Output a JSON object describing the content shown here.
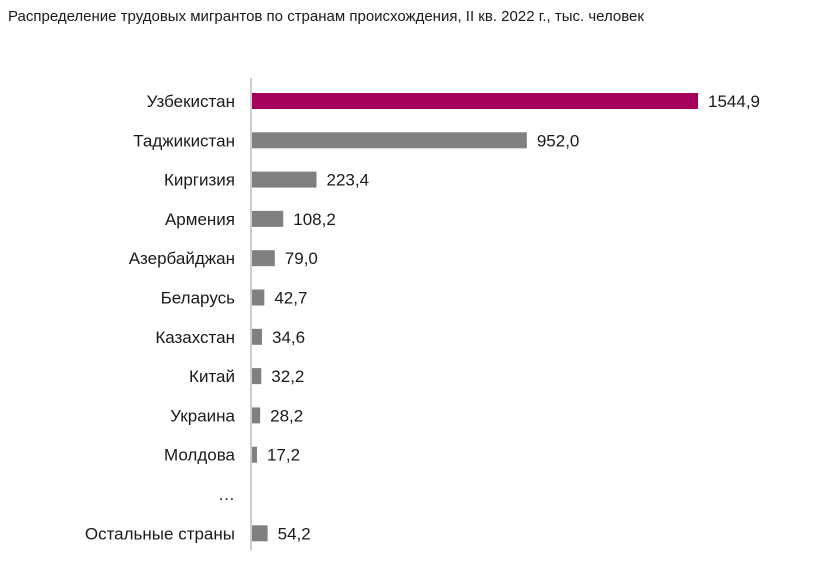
{
  "title": "Распределение трудовых мигрантов по странам происхождения, II кв. 2022 г., тыс. человек",
  "colors": {
    "highlight": "#a5005a",
    "bar": "#808080",
    "axis": "#999999"
  },
  "chart_data": {
    "type": "bar",
    "orientation": "horizontal",
    "title": "Распределение трудовых мигрантов по странам происхождения, II кв. 2022 г., тыс. человек",
    "xlabel": "",
    "ylabel": "",
    "grid": false,
    "legend": "none",
    "xlim": [
      0,
      1544.9
    ],
    "categories": [
      "Узбекистан",
      "Таджикистан",
      "Киргизия",
      "Армения",
      "Азербайджан",
      "Беларусь",
      "Казахстан",
      "Китай",
      "Украина",
      "Молдова",
      "…",
      "Остальные страны"
    ],
    "values": [
      1544.9,
      952.0,
      223.4,
      108.2,
      79.0,
      42.7,
      34.6,
      32.2,
      28.2,
      17.2,
      null,
      54.2
    ],
    "value_labels": [
      "1544,9",
      "952,0",
      "223,4",
      "108,2",
      "79,0",
      "42,7",
      "34,6",
      "32,2",
      "28,2",
      "17,2",
      "",
      "54,2"
    ],
    "highlighted_category": "Узбекистан"
  }
}
